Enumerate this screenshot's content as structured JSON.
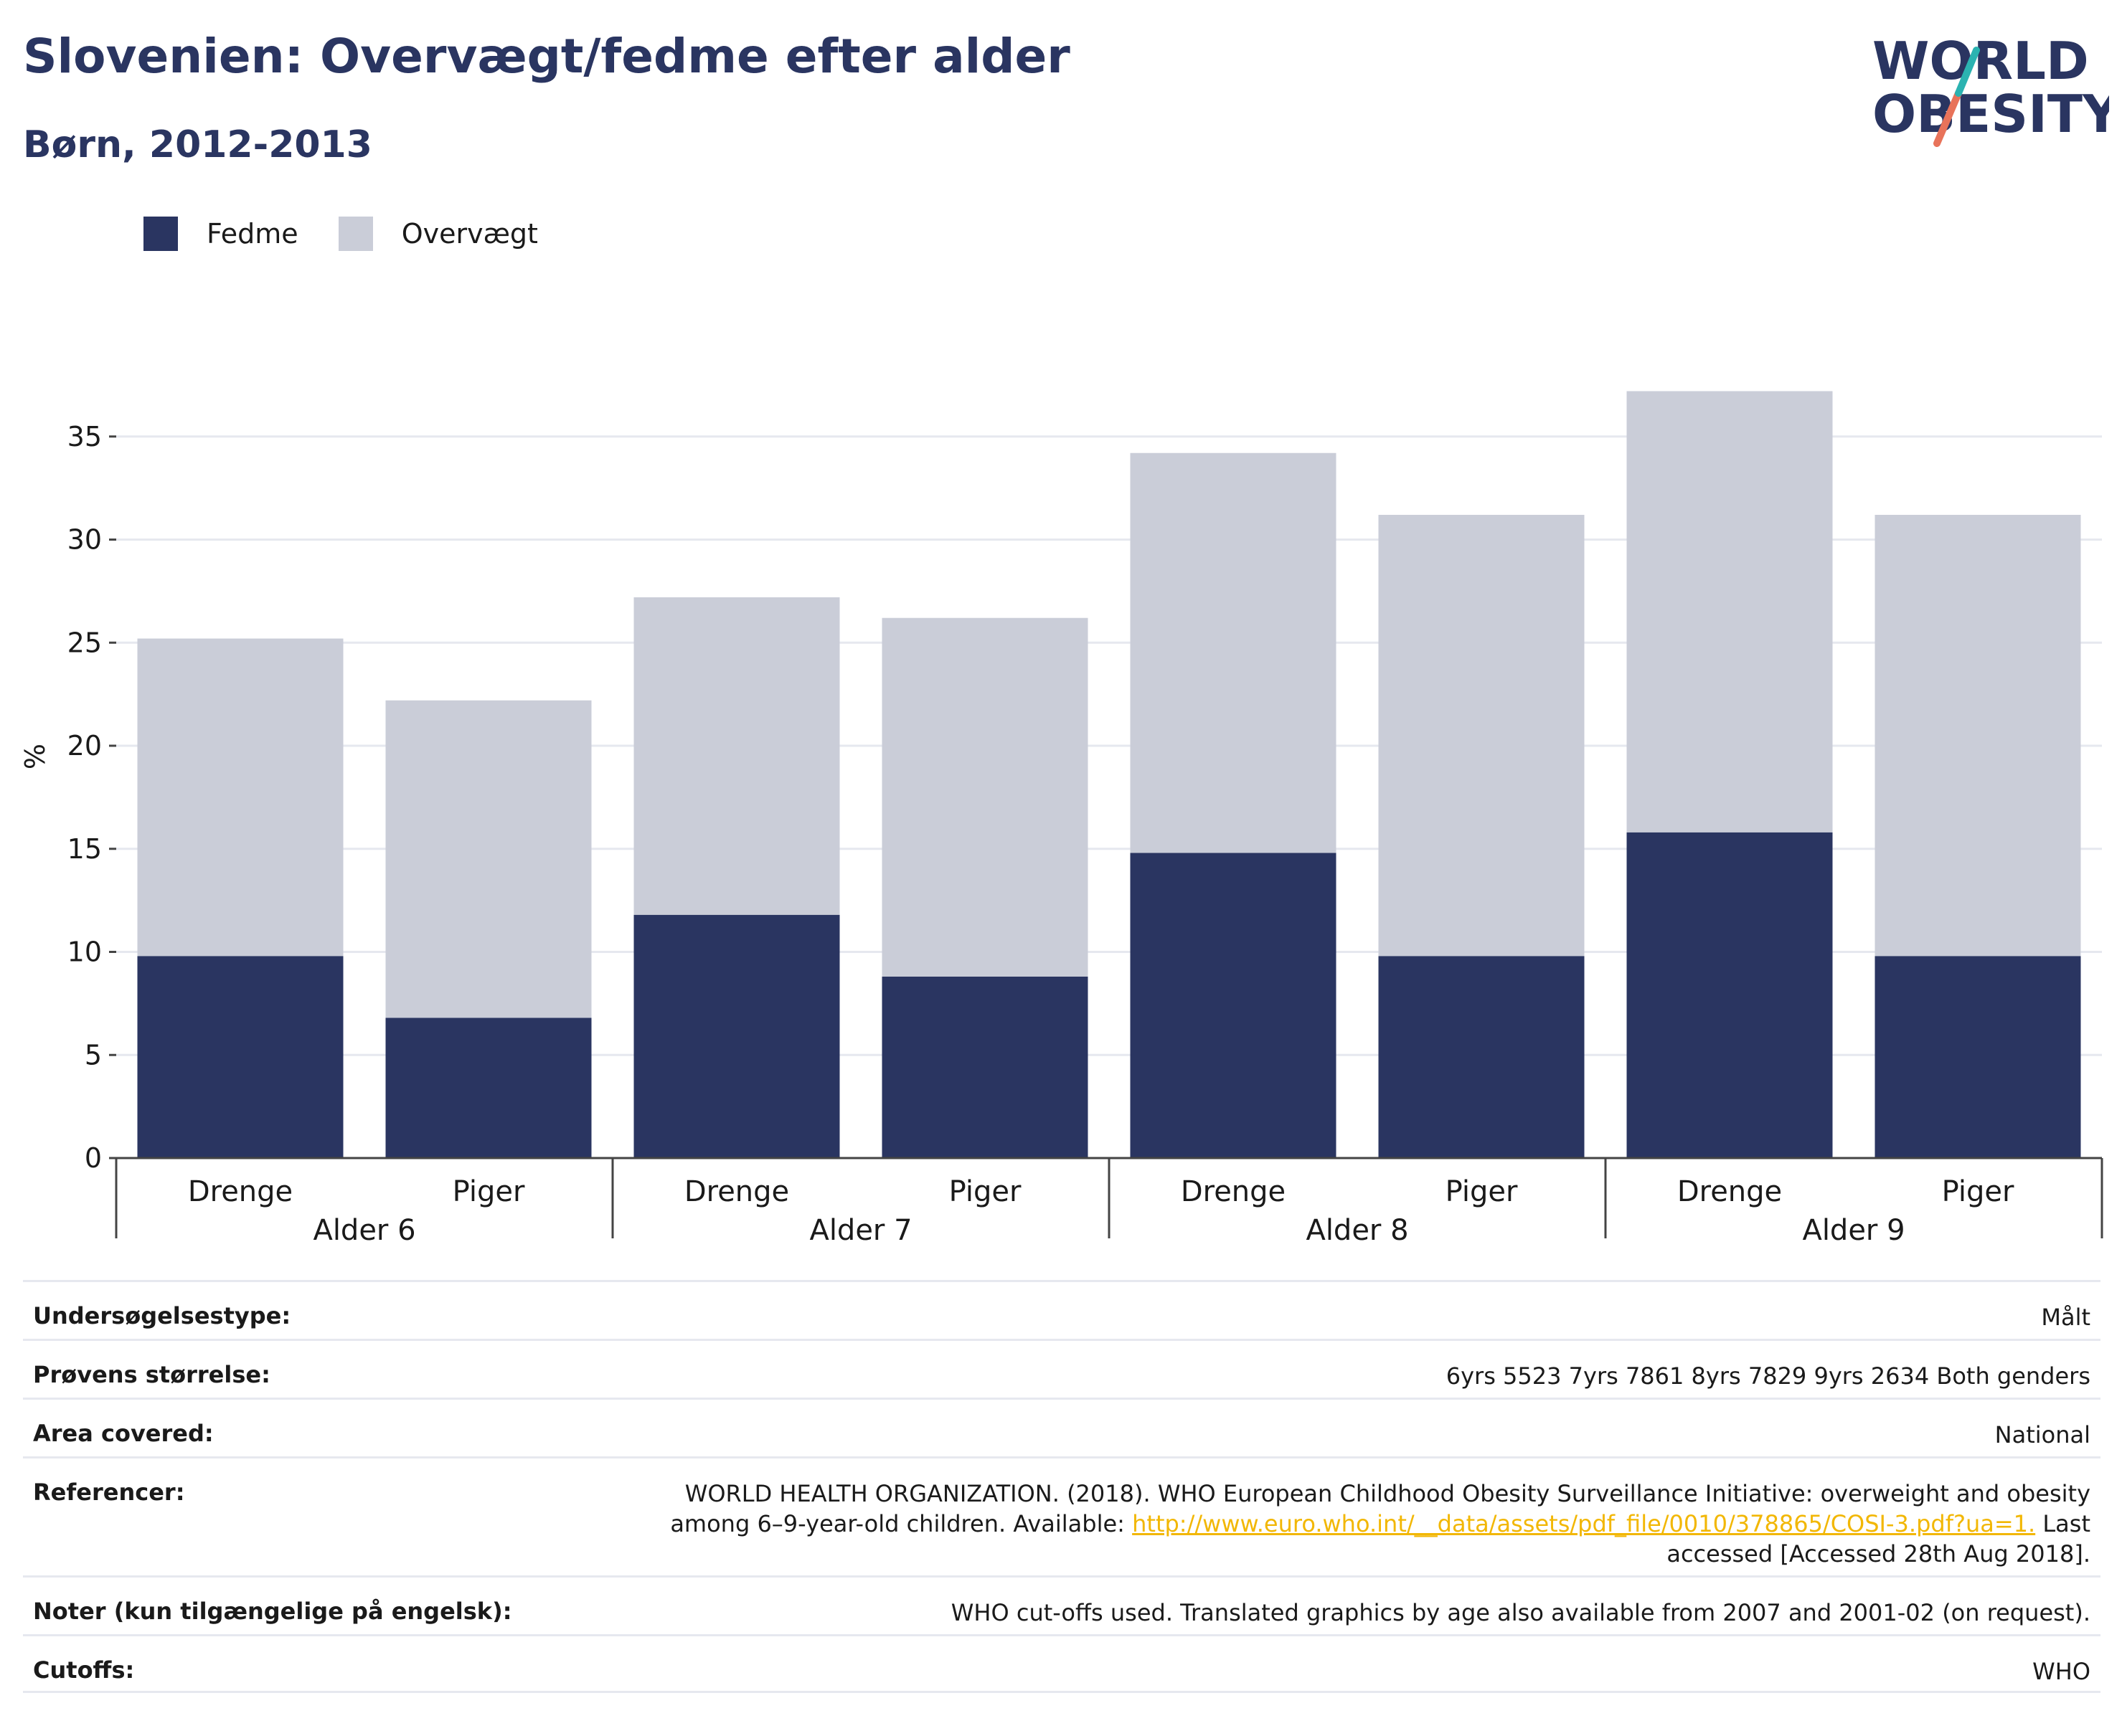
{
  "header": {
    "title": "Slovenien: Overvægt/fedme efter alder",
    "subtitle": "Børn, 2012-2013"
  },
  "logo": {
    "line1": "WORLD",
    "line2": "OBESITY",
    "colors": {
      "text": "#2a3561",
      "slash_top": "#2bb3b1",
      "slash_bottom": "#e8735a"
    }
  },
  "colors": {
    "fedme": "#2a3561",
    "overvaegt": "#cacdd8",
    "grid": "#e6e8ef",
    "axis": "#444444"
  },
  "legend": [
    {
      "label": "Fedme",
      "color": "#2a3561"
    },
    {
      "label": "Overvægt",
      "color": "#cacdd8"
    }
  ],
  "chart_data": {
    "type": "bar",
    "stacked": true,
    "ylabel": "%",
    "ylim": [
      0,
      40
    ],
    "yticks": [
      0,
      5,
      10,
      15,
      20,
      25,
      30,
      35
    ],
    "grid": true,
    "groups": [
      "Alder 6",
      "Alder 7",
      "Alder 8",
      "Alder 9"
    ],
    "categories": [
      "Drenge",
      "Piger",
      "Drenge",
      "Piger",
      "Drenge",
      "Piger",
      "Drenge",
      "Piger"
    ],
    "series": [
      {
        "name": "Fedme",
        "values": [
          9.8,
          6.8,
          11.8,
          8.8,
          14.8,
          9.8,
          15.8,
          9.8
        ]
      },
      {
        "name": "Overvægt",
        "values": [
          15.4,
          15.4,
          15.4,
          17.4,
          19.4,
          21.4,
          21.4,
          21.4
        ]
      }
    ]
  },
  "info": [
    {
      "label": "Undersøgelsestype:",
      "value": "Målt"
    },
    {
      "label": "Prøvens størrelse:",
      "value": "6yrs 5523 7yrs 7861 8yrs 7829 9yrs 2634 Both genders"
    },
    {
      "label": "Area covered:",
      "value": "National"
    },
    {
      "label": "Referencer:",
      "value_before": "WORLD HEALTH ORGANIZATION. (2018). WHO European Childhood Obesity Surveillance Initiative: overweight and obesity among 6–9-year-old children. Available: ",
      "link": "http://www.euro.who.int/__data/assets/pdf_file/0010/378865/COSI-3.pdf?ua=1.",
      "value_after": " Last accessed [Accessed 28th Aug 2018]."
    },
    {
      "label": "Noter (kun tilgængelige på engelsk):",
      "value": "WHO cut-offs used. Translated graphics by age also available from 2007 and 2001-02 (on request)."
    },
    {
      "label": "Cutoffs:",
      "value": "WHO"
    }
  ]
}
